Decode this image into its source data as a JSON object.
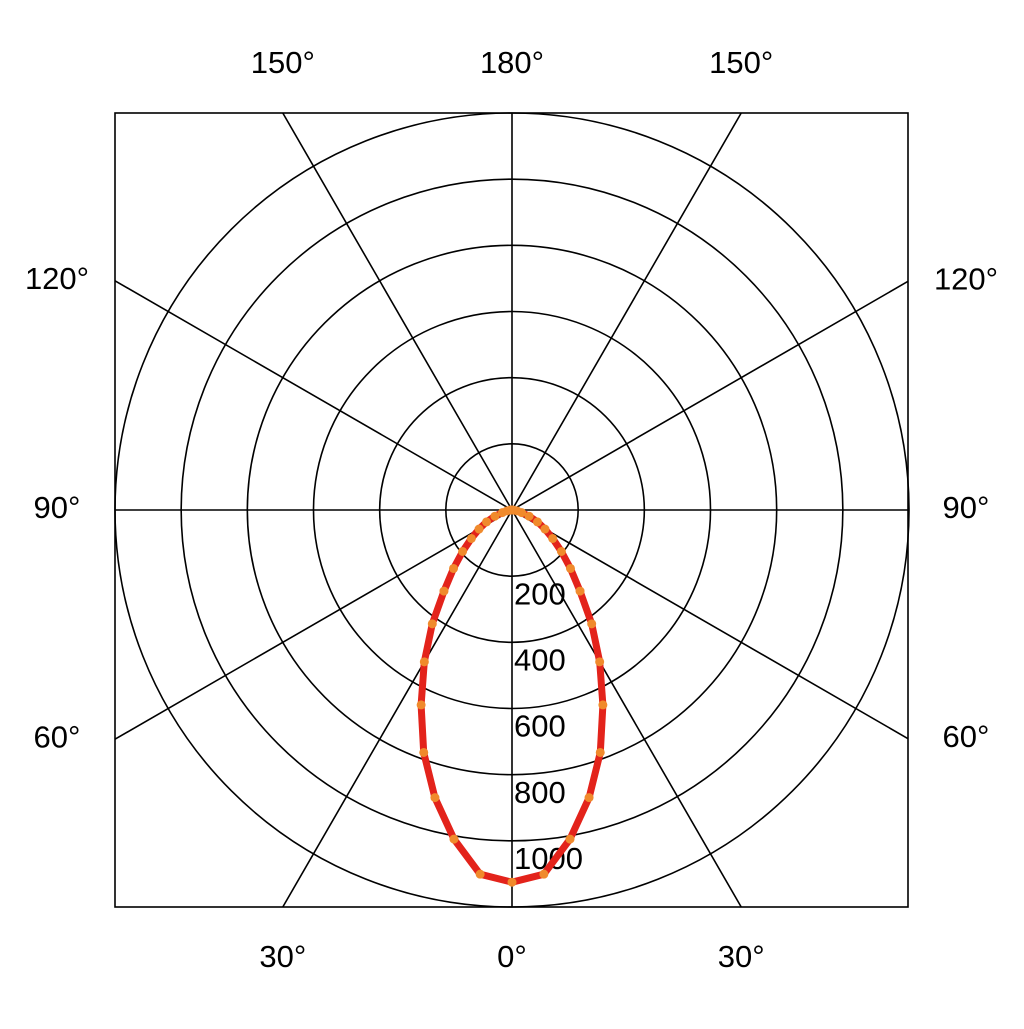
{
  "chart_data": {
    "type": "polar",
    "rlim": [
      0,
      1200
    ],
    "rticks": [
      200,
      400,
      600,
      800,
      1000
    ],
    "thetaticks": [
      {
        "value": 0,
        "label": "0°"
      },
      {
        "value": 30,
        "label": "30°"
      },
      {
        "value": 60,
        "label": "60°"
      },
      {
        "value": 90,
        "label": "90°"
      },
      {
        "value": 120,
        "label": "120°"
      },
      {
        "value": 150,
        "label": "150°"
      },
      {
        "value": 180,
        "label": "180°"
      },
      {
        "value": -30,
        "label": "30°"
      },
      {
        "value": -60,
        "label": "60°"
      },
      {
        "value": -90,
        "label": "90°"
      },
      {
        "value": -120,
        "label": "120°"
      },
      {
        "value": -150,
        "label": "150°"
      }
    ],
    "x": [
      -90,
      -85,
      -80,
      -75,
      -70,
      -65,
      -60,
      -55,
      -50,
      -45,
      -40,
      -35,
      -30,
      -25,
      -20,
      -15,
      -10,
      -5,
      0,
      5,
      10,
      15,
      20,
      25,
      30,
      35,
      40,
      45,
      50,
      55,
      60,
      65,
      70,
      75,
      80,
      85,
      90
    ],
    "series": [
      {
        "color": "#e3231b",
        "style": "line",
        "values": [
          0,
          5,
          15,
          30,
          55,
          85,
          115,
          150,
          195,
          250,
          320,
          420,
          530,
          650,
          780,
          900,
          1010,
          1105,
          1125,
          1105,
          1010,
          900,
          780,
          650,
          530,
          420,
          320,
          250,
          195,
          150,
          115,
          85,
          55,
          30,
          15,
          5,
          0
        ]
      },
      {
        "color": "#f08a2c",
        "style": "dots",
        "values": [
          0,
          5,
          15,
          30,
          55,
          85,
          115,
          150,
          195,
          250,
          320,
          420,
          530,
          650,
          780,
          900,
          1010,
          1105,
          1125,
          1105,
          1010,
          900,
          780,
          650,
          530,
          420,
          320,
          250,
          195,
          150,
          115,
          85,
          55,
          30,
          15,
          5,
          0
        ]
      }
    ]
  }
}
